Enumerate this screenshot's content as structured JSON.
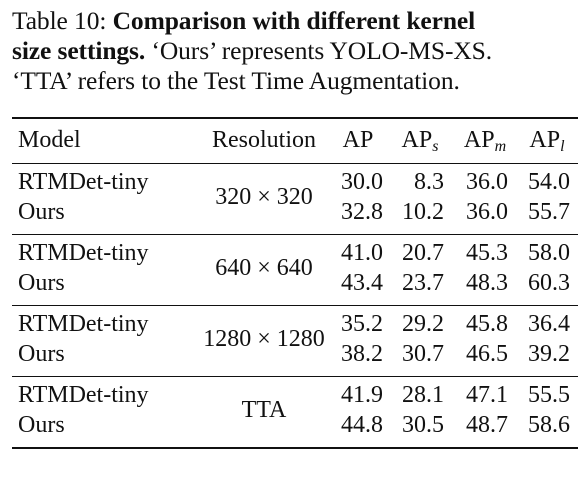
{
  "caption": {
    "label": "Table 10:",
    "title": "Comparison with different kernel size settings.",
    "line1_bold_a": "Comparison with different kernel",
    "line2_bold_b": "size settings.",
    "line2_rest": " ‘Ours’ represents YOLO-MS-XS.",
    "line3": "‘TTA’ refers to the Test Time Augmentation."
  },
  "table": {
    "headers": {
      "model": "Model",
      "resolution": "Resolution",
      "ap": "AP",
      "ap_s_base": "AP",
      "ap_s_sub": "s",
      "ap_m_base": "AP",
      "ap_m_sub": "m",
      "ap_l_base": "AP",
      "ap_l_sub": "l"
    },
    "groups": [
      {
        "resolution": "320 × 320",
        "rows": [
          {
            "model": "RTMDet-tiny",
            "ap": "30.0",
            "ap_s": "8.3",
            "ap_m": "36.0",
            "ap_l": "54.0"
          },
          {
            "model": "Ours",
            "ap": "32.8",
            "ap_s": "10.2",
            "ap_m": "36.0",
            "ap_l": "55.7"
          }
        ]
      },
      {
        "resolution": "640 × 640",
        "rows": [
          {
            "model": "RTMDet-tiny",
            "ap": "41.0",
            "ap_s": "20.7",
            "ap_m": "45.3",
            "ap_l": "58.0"
          },
          {
            "model": "Ours",
            "ap": "43.4",
            "ap_s": "23.7",
            "ap_m": "48.3",
            "ap_l": "60.3"
          }
        ]
      },
      {
        "resolution": "1280 × 1280",
        "rows": [
          {
            "model": "RTMDet-tiny",
            "ap": "35.2",
            "ap_s": "29.2",
            "ap_m": "45.8",
            "ap_l": "36.4"
          },
          {
            "model": "Ours",
            "ap": "38.2",
            "ap_s": "30.7",
            "ap_m": "46.5",
            "ap_l": "39.2"
          }
        ]
      },
      {
        "resolution": "TTA",
        "rows": [
          {
            "model": "RTMDet-tiny",
            "ap": "41.9",
            "ap_s": "28.1",
            "ap_m": "47.1",
            "ap_l": "55.5"
          },
          {
            "model": "Ours",
            "ap": "44.8",
            "ap_s": "30.5",
            "ap_m": "48.7",
            "ap_l": "58.6"
          }
        ]
      }
    ]
  }
}
